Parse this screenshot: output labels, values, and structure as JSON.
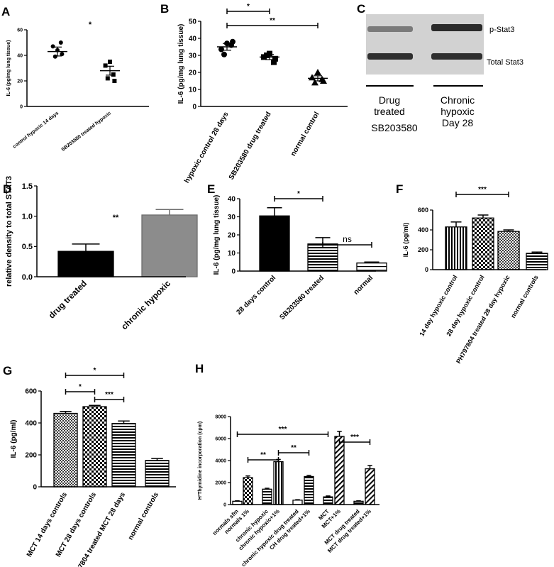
{
  "chart_data": [
    {
      "panel": "A",
      "type": "scatter",
      "ylabel": "IL-6 (pg/mg lung tissue)",
      "ylim": [
        0,
        60
      ],
      "yticks": [
        "0",
        "20",
        "40",
        "60"
      ],
      "categories": [
        "control hypoxic 14 days",
        "SB203580 treated hypoxic"
      ],
      "series": [
        {
          "points": [
            44,
            47,
            50,
            39,
            41
          ],
          "mean": 43,
          "sem": 3.5,
          "marker": "circle"
        },
        {
          "points": [
            35,
            32,
            25,
            22,
            20
          ],
          "mean": 28,
          "sem": 3.5,
          "marker": "square"
        }
      ],
      "significance": [
        {
          "text": "*"
        }
      ]
    },
    {
      "panel": "B",
      "type": "scatter",
      "ylabel": "IL-6 (pg/mg lung tissue)",
      "ylim": [
        0,
        50
      ],
      "yticks": [
        "0",
        "10",
        "20",
        "30",
        "40",
        "50"
      ],
      "categories": [
        "hypoxic control 28 days",
        "SB203580 drug treated",
        "normal control"
      ],
      "series": [
        {
          "points": [
            37,
            33.5,
            36,
            30.5,
            38
          ],
          "mean": 35,
          "sem": 2,
          "marker": "circle"
        },
        {
          "points": [
            31,
            29,
            26,
            30,
            28
          ],
          "mean": 29,
          "sem": 1.5,
          "marker": "square"
        },
        {
          "points": [
            20,
            17,
            16,
            14,
            15
          ],
          "mean": 16.5,
          "sem": 1.5,
          "marker": "triangle"
        }
      ],
      "significance": [
        {
          "text": "*",
          "from": 0,
          "to": 1
        },
        {
          "text": "**",
          "from": 0,
          "to": 2
        }
      ]
    },
    {
      "panel": "D",
      "type": "bar",
      "ylabel": "relative density to total STAT3",
      "ylim": [
        0,
        1.5
      ],
      "yticks": [
        "0.0",
        "0.5",
        "1.0",
        "1.5"
      ],
      "categories": [
        "drug treated",
        "chronic hypoxic"
      ],
      "values": [
        0.42,
        1.02
      ],
      "errors": [
        0.12,
        0.09
      ],
      "colors": [
        "#000000",
        "#8c8c8c"
      ],
      "significance": [
        {
          "text": "**"
        }
      ]
    },
    {
      "panel": "E",
      "type": "bar",
      "ylabel": "IL-6 (pg/mg lung tissue)",
      "ylim": [
        0,
        40
      ],
      "yticks": [
        "0",
        "10",
        "20",
        "30",
        "40"
      ],
      "categories": [
        "28 days control",
        "SB203580 treated",
        "normal"
      ],
      "values": [
        30.5,
        15,
        4.5
      ],
      "errors": [
        4.5,
        3.5,
        0.5
      ],
      "patterns": [
        "solid",
        "hlines",
        "hlines-sparse"
      ],
      "significance": [
        {
          "text": "*",
          "from": 0,
          "to": 1
        },
        {
          "text": "ns",
          "from": 1,
          "to": 2
        }
      ]
    },
    {
      "panel": "F",
      "type": "bar",
      "ylabel": "IL-6 (pg/ml)",
      "ylim": [
        0,
        600
      ],
      "yticks": [
        "0",
        "200",
        "400",
        "600"
      ],
      "categories": [
        "14 day hypoxic control",
        "28 day hypoxic control",
        "PH797804 treated 28 day hypoxic",
        "normal controls"
      ],
      "values": [
        430,
        520,
        385,
        165
      ],
      "errors": [
        50,
        30,
        15,
        12
      ],
      "patterns": [
        "vlines",
        "checker",
        "dots",
        "hlines"
      ],
      "significance": [
        {
          "text": "***",
          "from": 0,
          "to": 2
        }
      ]
    },
    {
      "panel": "G",
      "type": "bar",
      "ylabel": "IL-6 (pg/ml)",
      "ylim": [
        0,
        600
      ],
      "yticks": [
        "0",
        "200",
        "400",
        "600"
      ],
      "categories": [
        "MCT 14 days controls",
        "MCT 28 days controls",
        "PH797804 treated MCT 28 days",
        "normal controls"
      ],
      "values": [
        460,
        502,
        397,
        165
      ],
      "errors": [
        12,
        8,
        15,
        12
      ],
      "patterns": [
        "dots",
        "checker",
        "hlines",
        "hlines"
      ],
      "significance": [
        {
          "text": "*",
          "from": 0,
          "to": 2
        },
        {
          "text": "*",
          "from": 0,
          "to": 1
        },
        {
          "text": "***",
          "from": 1,
          "to": 2
        }
      ]
    },
    {
      "panel": "H",
      "type": "bar",
      "ylabel": "H³Thymidine incorporation (cpm)",
      "ylim": [
        0,
        8000
      ],
      "yticks": [
        "0",
        "2000",
        "4000",
        "6000",
        "8000"
      ],
      "categories": [
        "normals sfm",
        "normals 1%",
        "chronic hypoxic",
        "chronic hypoxic+1%",
        "chronic hypoxic drug treated",
        "CH drug treated+1%",
        "MCT",
        "MCT+1%",
        "MCT drug treated",
        "MCT drug treated+1%"
      ],
      "values": [
        300,
        2450,
        1400,
        3900,
        400,
        2550,
        700,
        6200,
        300,
        3250
      ],
      "errors": [
        40,
        150,
        80,
        200,
        40,
        100,
        80,
        450,
        40,
        300
      ],
      "patterns": [
        "solid-white",
        "checker",
        "hlines",
        "vlines",
        "solid-white",
        "hlines",
        "hlines",
        "diag",
        "hlines",
        "diag"
      ],
      "significance": [
        {
          "text": "***",
          "from": 0,
          "to": 6
        },
        {
          "text": "**",
          "from": 1,
          "to": 3
        },
        {
          "text": "**",
          "from": 3,
          "to": 5
        },
        {
          "text": "***",
          "from": 7,
          "to": 9
        }
      ]
    }
  ],
  "panel_labels": {
    "a": "A",
    "b": "B",
    "c": "C",
    "d": "D",
    "e": "E",
    "f": "F",
    "g": "G",
    "h": "H"
  },
  "blot": {
    "band_top": "p-Stat3",
    "band_bottom": "Total Stat3",
    "group1_line1": "Drug",
    "group1_line2": "treated",
    "group1_line3": "SB203580",
    "group2_line1": "Chronic",
    "group2_line2": "hypoxic",
    "group2_line3": "Day 28"
  },
  "colors": {
    "axis": "#000000",
    "bar_gray": "#8c8c8c",
    "background": "#ffffff"
  }
}
